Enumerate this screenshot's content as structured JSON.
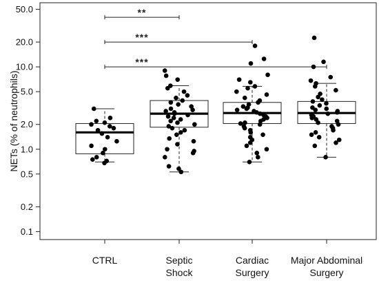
{
  "chart_data": {
    "type": "boxplot",
    "title": "",
    "ylabel": "NETs (% of neutrophils)",
    "yscale": "log",
    "ylim": [
      0.08,
      60
    ],
    "yticks": [
      "0.1",
      "0.2",
      "0.5",
      "1.0",
      "2.0",
      "5.0",
      "10.0",
      "20.0",
      "50.0"
    ],
    "ytick_values": [
      0.1,
      0.2,
      0.5,
      1.0,
      2.0,
      5.0,
      10.0,
      20.0,
      50.0
    ],
    "grid": false,
    "groups": [
      {
        "name": "CTRL",
        "label_lines": [
          "CTRL"
        ],
        "whisker_low": 0.7,
        "q1": 0.88,
        "median": 1.6,
        "q3": 2.05,
        "whisker_high": 3.1,
        "points": [
          0.68,
          0.72,
          0.75,
          0.8,
          0.9,
          1.0,
          1.1,
          1.25,
          1.4,
          1.55,
          1.7,
          1.8,
          1.9,
          2.0,
          2.1,
          2.2,
          2.4,
          3.1
        ]
      },
      {
        "name": "Septic Shock",
        "label_lines": [
          "Septic",
          "Shock"
        ],
        "whisker_low": 0.53,
        "q1": 1.85,
        "median": 2.7,
        "q3": 3.9,
        "whisker_high": 5.9,
        "points": [
          0.53,
          0.58,
          0.62,
          0.8,
          0.9,
          0.95,
          1.0,
          1.15,
          1.25,
          1.35,
          1.5,
          1.6,
          1.7,
          1.8,
          1.9,
          2.0,
          2.1,
          2.2,
          2.3,
          2.4,
          2.5,
          2.6,
          2.7,
          2.8,
          2.9,
          3.0,
          3.1,
          3.3,
          3.5,
          3.7,
          3.9,
          4.2,
          4.5,
          5.0,
          5.5,
          5.9,
          7.0,
          7.8,
          9.0
        ]
      },
      {
        "name": "Cardiac Surgery",
        "label_lines": [
          "Cardiac",
          "Surgery"
        ],
        "whisker_low": 0.7,
        "q1": 2.05,
        "median": 2.75,
        "q3": 3.7,
        "whisker_high": 5.8,
        "points": [
          0.7,
          0.8,
          0.9,
          1.0,
          1.1,
          1.2,
          1.3,
          1.4,
          1.5,
          1.6,
          1.7,
          1.8,
          1.9,
          2.0,
          2.05,
          2.1,
          2.2,
          2.3,
          2.4,
          2.5,
          2.6,
          2.7,
          2.8,
          2.9,
          3.0,
          3.1,
          3.2,
          3.3,
          3.5,
          3.7,
          3.9,
          4.2,
          4.6,
          5.0,
          5.5,
          5.8,
          6.5,
          7.0,
          8.0,
          11.0,
          12.5,
          18.0
        ]
      },
      {
        "name": "Major Abdominal Surgery",
        "label_lines": [
          "Major Abdominal",
          "Surgery"
        ],
        "whisker_low": 0.8,
        "q1": 2.05,
        "median": 2.75,
        "q3": 3.8,
        "whisker_high": 6.3,
        "points": [
          0.8,
          1.1,
          1.2,
          1.3,
          1.4,
          1.5,
          1.6,
          1.7,
          1.8,
          1.9,
          2.0,
          2.1,
          2.2,
          2.3,
          2.4,
          2.5,
          2.6,
          2.7,
          2.8,
          2.9,
          3.0,
          3.1,
          3.2,
          3.4,
          3.6,
          3.8,
          4.0,
          4.3,
          4.7,
          5.2,
          5.8,
          6.3,
          6.8,
          7.5,
          10.0,
          11.5,
          22.5
        ]
      }
    ],
    "significance": [
      {
        "from": "CTRL",
        "to": "Septic Shock",
        "label": "**",
        "y": 40
      },
      {
        "from": "CTRL",
        "to": "Cardiac Surgery",
        "label": "***",
        "y": 20
      },
      {
        "from": "CTRL",
        "to": "Major Abdominal Surgery",
        "label": "***",
        "y": 10
      }
    ]
  }
}
